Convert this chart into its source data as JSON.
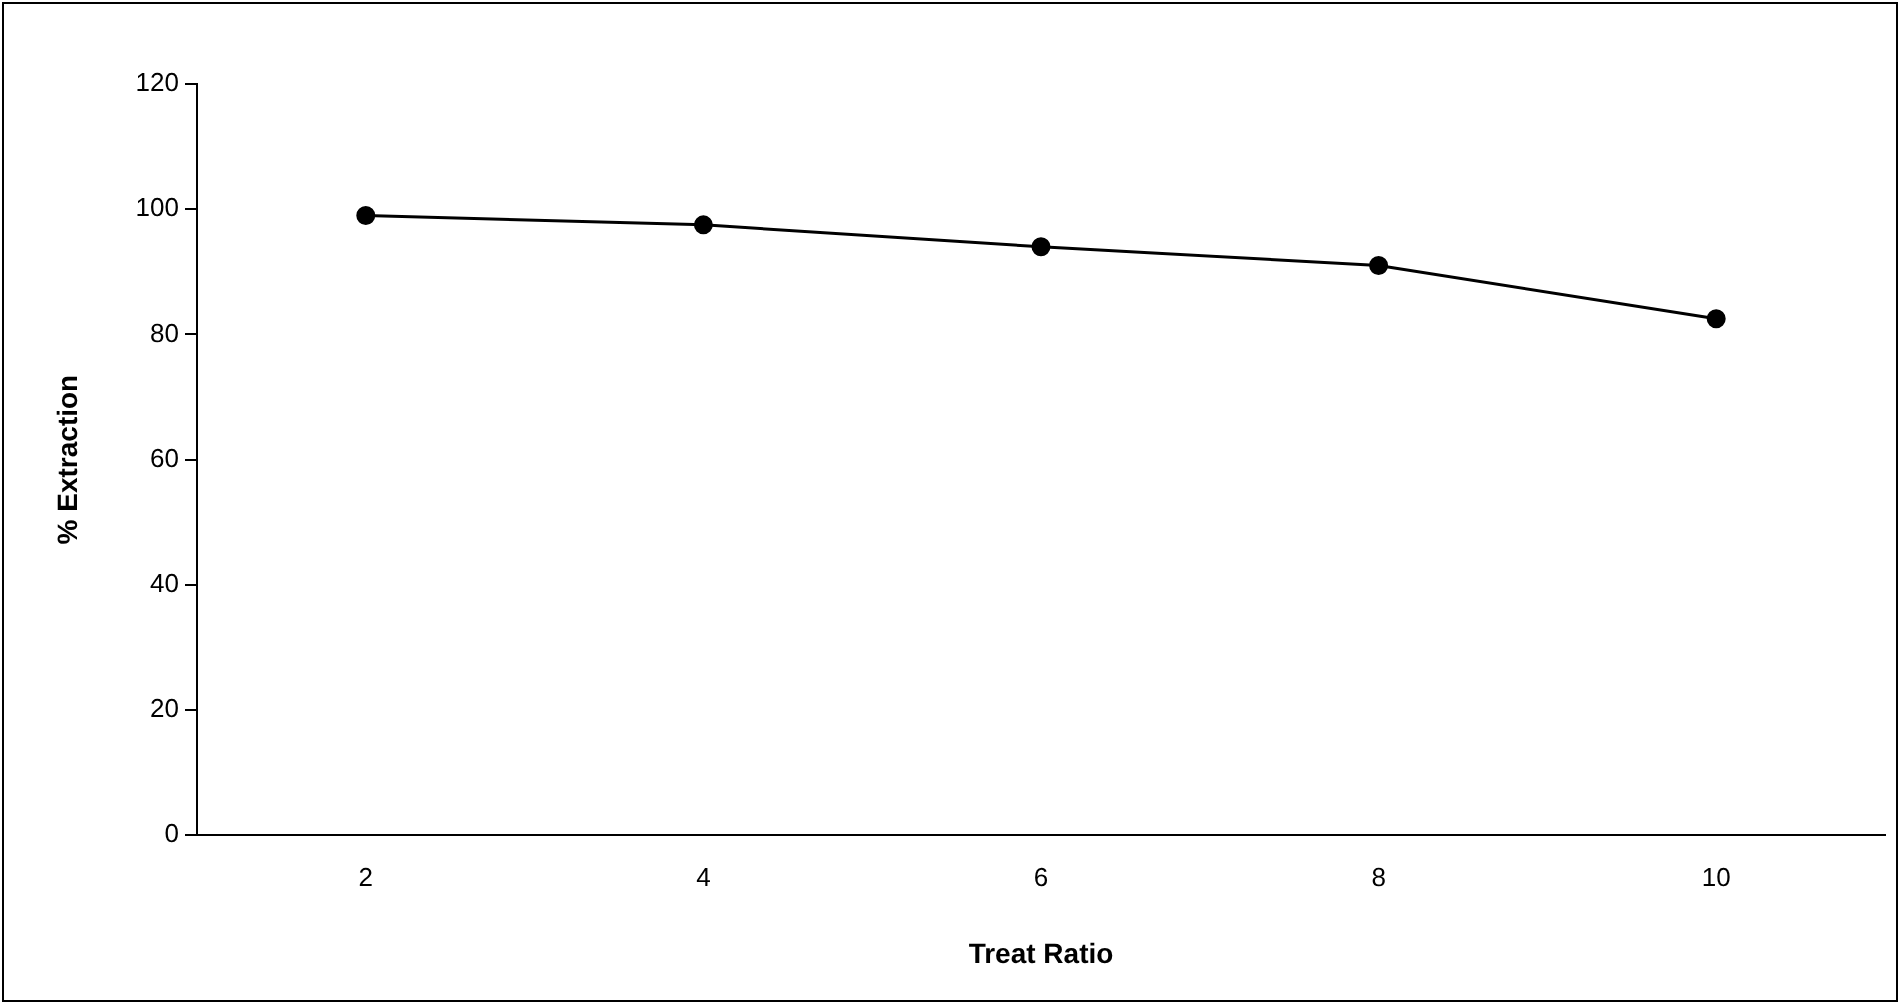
{
  "chart_data": {
    "type": "line",
    "xlabel": "Treat Ratio",
    "ylabel": "% Extraction",
    "categories": [
      "2",
      "4",
      "6",
      "8",
      "10"
    ],
    "series": [
      {
        "color": "#000000",
        "values": [
          99,
          97.5,
          94,
          91,
          82.5
        ]
      }
    ],
    "ylim": [
      0,
      120
    ],
    "yticks": [
      0,
      20,
      40,
      60,
      80,
      100,
      120
    ],
    "grid": false,
    "legend": false,
    "marker": "circle",
    "line_style": "solid"
  }
}
